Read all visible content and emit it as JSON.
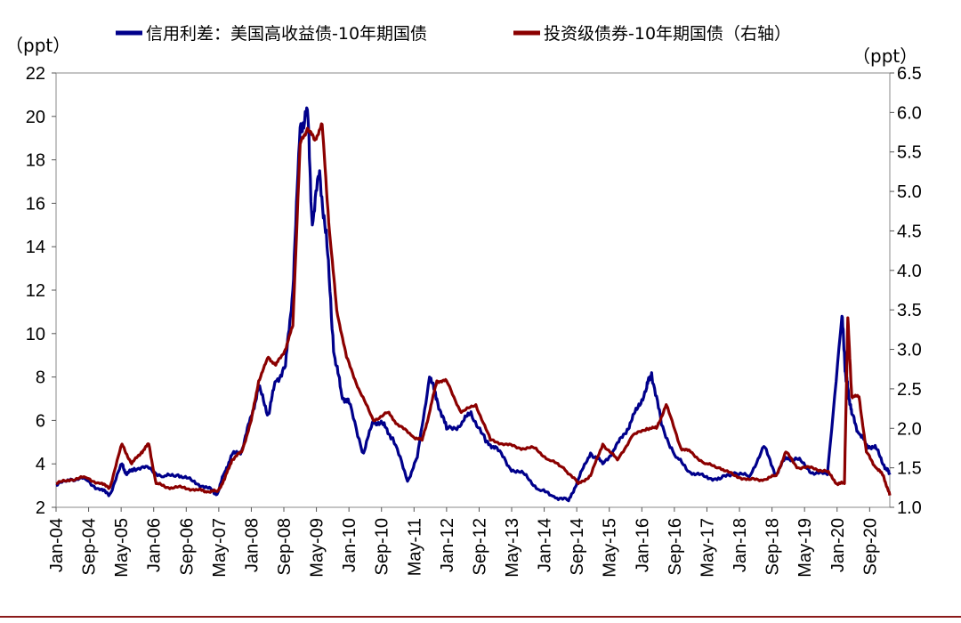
{
  "chart_data": {
    "type": "line",
    "legend": [
      {
        "label": "信用利差：美国高收益债-10年期国债",
        "color": "#00008b",
        "axis": "left"
      },
      {
        "label": "投资级债券-10年期国债（右轴）",
        "color": "#8b0000",
        "axis": "right"
      }
    ],
    "left_axis": {
      "unit": "（ppt）",
      "ylim": [
        2,
        22
      ],
      "ticks": [
        "22",
        "20",
        "18",
        "16",
        "14",
        "12",
        "10",
        "8",
        "6",
        "4",
        "2"
      ]
    },
    "right_axis": {
      "unit": "（ppt）",
      "ylim": [
        1.0,
        6.5
      ],
      "ticks": [
        "6.5",
        "6.0",
        "5.5",
        "5.0",
        "4.5",
        "4.0",
        "3.5",
        "3.0",
        "2.5",
        "2.0",
        "1.5",
        "1.0"
      ]
    },
    "x_range": [
      2004.0,
      2021.08
    ],
    "x_tick_labels": [
      "Jan-04",
      "Sep-04",
      "May-05",
      "Jan-06",
      "Sep-06",
      "May-07",
      "Jan-08",
      "Sep-08",
      "May-09",
      "Jan-10",
      "Sep-10",
      "May-11",
      "Jan-12",
      "Sep-12",
      "May-13",
      "Jan-14",
      "Sep-14",
      "May-15",
      "Jan-16",
      "Sep-16",
      "May-17",
      "Jan-18",
      "Sep-18",
      "May-19",
      "Jan-20",
      "Sep-20"
    ],
    "series": [
      {
        "name": "信用利差：美国高收益债-10年期国债",
        "axis": "left",
        "color": "#00008b",
        "x": [
          2004.0,
          2004.3,
          2004.6,
          2004.9,
          2005.1,
          2005.35,
          2005.45,
          2005.6,
          2005.9,
          2006.2,
          2006.5,
          2006.8,
          2007.1,
          2007.3,
          2007.45,
          2007.6,
          2007.8,
          2008.0,
          2008.15,
          2008.35,
          2008.5,
          2008.7,
          2008.85,
          2009.0,
          2009.15,
          2009.25,
          2009.4,
          2009.55,
          2009.7,
          2009.85,
          2010.0,
          2010.3,
          2010.5,
          2010.7,
          2010.9,
          2011.2,
          2011.4,
          2011.65,
          2011.8,
          2012.0,
          2012.3,
          2012.5,
          2012.8,
          2013.0,
          2013.3,
          2013.6,
          2013.9,
          2014.2,
          2014.5,
          2014.7,
          2014.95,
          2015.2,
          2015.45,
          2015.7,
          2015.9,
          2016.1,
          2016.2,
          2016.4,
          2016.7,
          2017.0,
          2017.3,
          2017.6,
          2017.9,
          2018.2,
          2018.5,
          2018.75,
          2018.95,
          2019.2,
          2019.5,
          2019.8,
          2020.1,
          2020.18,
          2020.22,
          2020.3,
          2020.45,
          2020.6,
          2020.8,
          2021.0,
          2021.08
        ],
        "values": [
          3.0,
          3.3,
          3.3,
          2.8,
          2.6,
          4.0,
          3.5,
          3.8,
          3.8,
          3.4,
          3.5,
          3.2,
          2.9,
          2.6,
          3.6,
          4.4,
          4.6,
          6.2,
          7.5,
          6.3,
          7.8,
          8.5,
          12.0,
          19.5,
          20.3,
          15.0,
          17.5,
          14.0,
          9.0,
          7.2,
          6.8,
          4.5,
          6.0,
          5.8,
          5.2,
          3.2,
          4.3,
          8.0,
          7.0,
          5.6,
          5.8,
          6.4,
          5.0,
          4.8,
          3.8,
          3.5,
          2.8,
          2.5,
          2.3,
          3.3,
          4.5,
          4.0,
          4.7,
          5.6,
          6.5,
          7.5,
          8.2,
          5.8,
          4.3,
          3.6,
          3.4,
          3.3,
          3.6,
          3.4,
          4.8,
          3.5,
          4.3,
          4.2,
          3.6,
          3.5,
          10.8,
          8.0,
          7.5,
          6.3,
          5.4,
          4.9,
          4.7,
          3.8,
          3.5
        ]
      },
      {
        "name": "投资级债券-10年期国债（右轴）",
        "axis": "right",
        "color": "#8b0000",
        "x": [
          2004.0,
          2004.3,
          2004.6,
          2004.9,
          2005.1,
          2005.35,
          2005.55,
          2005.75,
          2005.9,
          2006.05,
          2006.3,
          2006.6,
          2006.9,
          2007.1,
          2007.3,
          2007.45,
          2007.6,
          2007.8,
          2008.0,
          2008.15,
          2008.35,
          2008.5,
          2008.7,
          2008.85,
          2009.0,
          2009.15,
          2009.3,
          2009.45,
          2009.6,
          2009.75,
          2009.95,
          2010.2,
          2010.5,
          2010.8,
          2011.0,
          2011.3,
          2011.5,
          2011.65,
          2011.8,
          2012.0,
          2012.3,
          2012.6,
          2012.9,
          2013.2,
          2013.5,
          2013.8,
          2014.1,
          2014.4,
          2014.7,
          2014.95,
          2015.2,
          2015.5,
          2015.8,
          2016.1,
          2016.3,
          2016.5,
          2016.8,
          2017.0,
          2017.3,
          2017.6,
          2017.9,
          2018.2,
          2018.5,
          2018.75,
          2018.95,
          2019.2,
          2019.5,
          2019.8,
          2020.0,
          2020.15,
          2020.22,
          2020.3,
          2020.45,
          2020.6,
          2020.8,
          2020.95,
          2021.08
        ],
        "values": [
          1.3,
          1.35,
          1.38,
          1.3,
          1.25,
          1.8,
          1.55,
          1.7,
          1.8,
          1.3,
          1.25,
          1.25,
          1.22,
          1.2,
          1.2,
          1.35,
          1.6,
          1.7,
          2.1,
          2.6,
          2.9,
          2.8,
          3.0,
          3.3,
          5.6,
          5.8,
          5.65,
          5.85,
          4.5,
          3.5,
          2.9,
          2.5,
          2.1,
          2.2,
          2.05,
          1.9,
          1.85,
          2.2,
          2.6,
          2.6,
          2.2,
          2.3,
          1.85,
          1.8,
          1.75,
          1.75,
          1.6,
          1.5,
          1.3,
          1.4,
          1.8,
          1.6,
          1.9,
          2.0,
          2.0,
          2.3,
          1.75,
          1.7,
          1.55,
          1.5,
          1.4,
          1.35,
          1.35,
          1.4,
          1.7,
          1.5,
          1.5,
          1.45,
          1.3,
          1.3,
          3.4,
          2.4,
          2.4,
          1.7,
          1.5,
          1.4,
          1.15
        ]
      }
    ]
  }
}
